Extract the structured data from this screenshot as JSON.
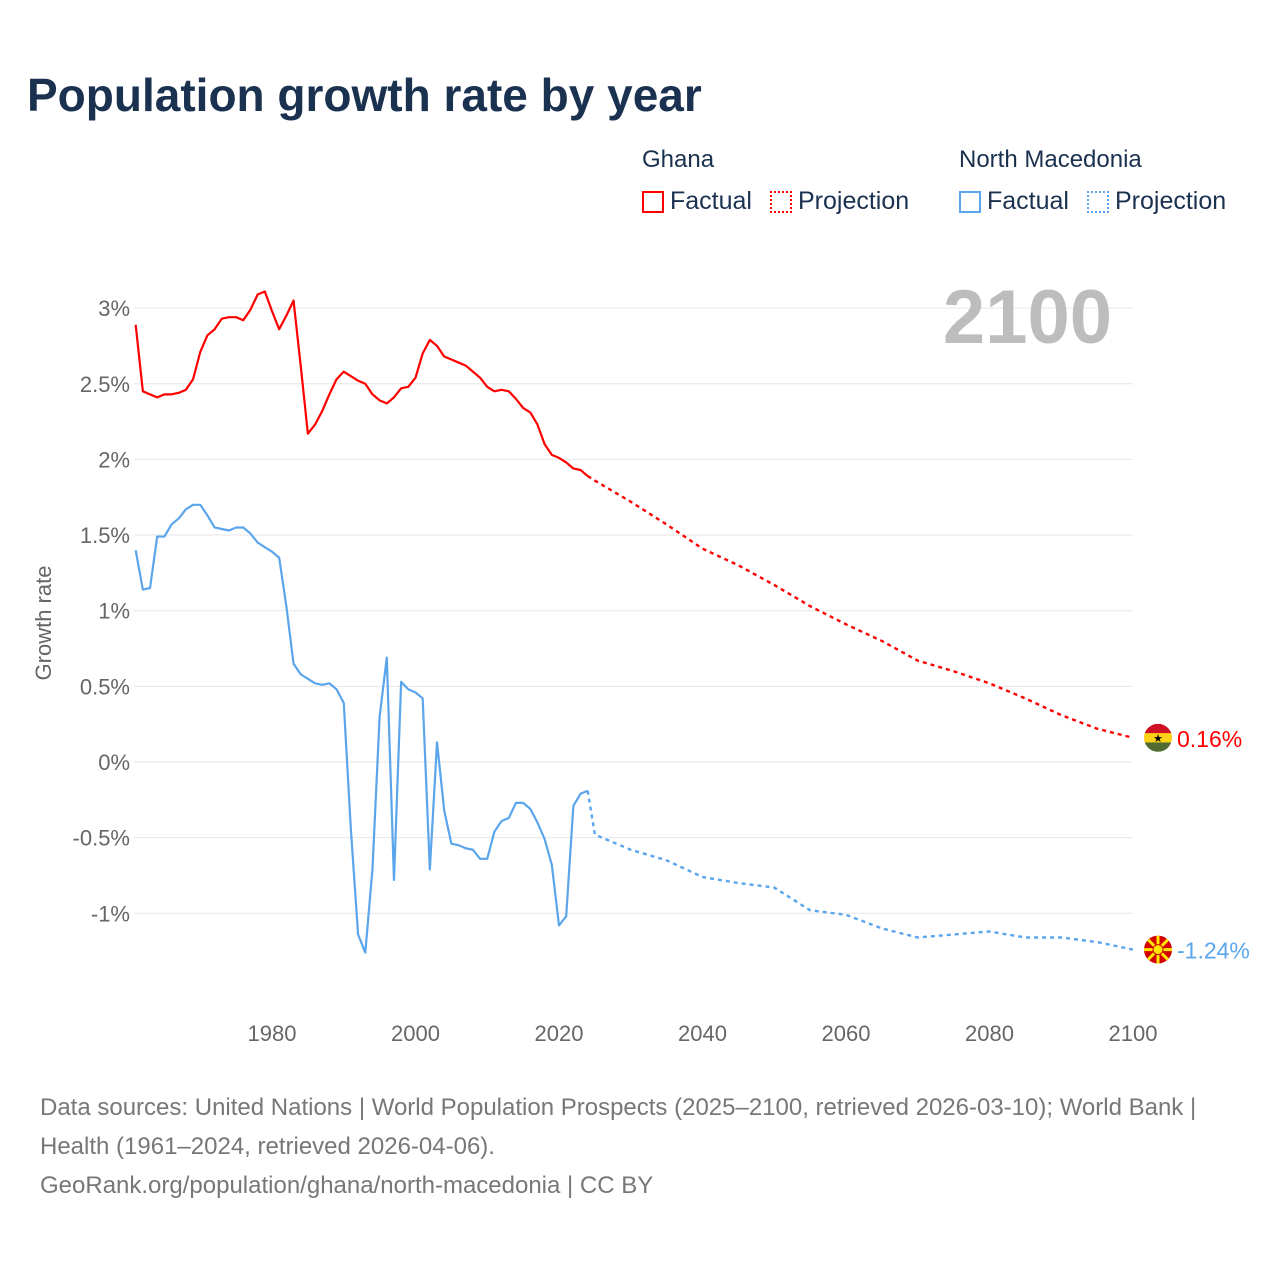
{
  "title": "Population growth rate by year",
  "legend": {
    "groups": [
      {
        "name": "Ghana",
        "color": "#ff0000",
        "factual_label": "Factual",
        "projection_label": "Projection"
      },
      {
        "name": "North Macedonia",
        "color": "#5aa5ec",
        "factual_label": "Factual",
        "projection_label": "Projection"
      }
    ]
  },
  "footer": {
    "sources": "Data sources: United Nations | World Population Prospects (2025–2100, retrieved 2026-03-10); World Bank | Health (1961–2024, retrieved 2026-04-06).",
    "link": "GeoRank.org/population/ghana/north-macedonia | CC BY"
  },
  "chart_data": {
    "type": "line",
    "ylabel": "Growth rate",
    "year_label": "2100",
    "xlim": [
      1961,
      2100
    ],
    "ylim": [
      -1.5,
      3.2
    ],
    "x_ticks": [
      1980,
      2000,
      2020,
      2040,
      2060,
      2080,
      2100
    ],
    "y_ticks": [
      3,
      2.5,
      2,
      1.5,
      1,
      0.5,
      0,
      -0.5,
      -1
    ],
    "y_tick_labels": [
      "3%",
      "2.5%",
      "2%",
      "1.5%",
      "1%",
      "0.5%",
      "0%",
      "-0.5%",
      "-1%"
    ],
    "grid": true,
    "series": [
      {
        "name": "Ghana",
        "color": "#ff0000",
        "end_label": "0.16%",
        "flag": "ghana-flag",
        "factual": {
          "start": 1961,
          "values": [
            2.89,
            2.45,
            2.43,
            2.41,
            2.43,
            2.43,
            2.44,
            2.46,
            2.53,
            2.71,
            2.82,
            2.86,
            2.93,
            2.94,
            2.94,
            2.92,
            2.99,
            3.09,
            3.11,
            2.98,
            2.86,
            2.95,
            3.05,
            2.62,
            2.17,
            2.23,
            2.32,
            2.43,
            2.53,
            2.58,
            2.55,
            2.52,
            2.5,
            2.43,
            2.39,
            2.37,
            2.41,
            2.47,
            2.48,
            2.54,
            2.7,
            2.79,
            2.75,
            2.68,
            2.66,
            2.64,
            2.62,
            2.58,
            2.54,
            2.48,
            2.45,
            2.46,
            2.45,
            2.4,
            2.34,
            2.31,
            2.23,
            2.1,
            2.03,
            2.01,
            1.98,
            1.94,
            1.93,
            1.89
          ]
        },
        "projection": {
          "x": [
            2024,
            2025,
            2030,
            2035,
            2040,
            2045,
            2050,
            2055,
            2060,
            2065,
            2070,
            2075,
            2080,
            2085,
            2090,
            2095,
            2100
          ],
          "values": [
            1.89,
            1.86,
            1.72,
            1.57,
            1.41,
            1.3,
            1.17,
            1.03,
            0.91,
            0.8,
            0.67,
            0.6,
            0.52,
            0.42,
            0.31,
            0.22,
            0.16
          ]
        }
      },
      {
        "name": "North Macedonia",
        "color": "#5aa5ec",
        "end_label": "-1.24%",
        "flag": "north-macedonia-flag",
        "factual": {
          "start": 1961,
          "values": [
            1.4,
            1.14,
            1.15,
            1.49,
            1.49,
            1.57,
            1.61,
            1.67,
            1.7,
            1.7,
            1.63,
            1.55,
            1.54,
            1.53,
            1.55,
            1.55,
            1.51,
            1.45,
            1.42,
            1.39,
            1.35,
            1.03,
            0.65,
            0.58,
            0.55,
            0.52,
            0.51,
            0.52,
            0.48,
            0.39,
            -0.45,
            -1.14,
            -1.26,
            -0.71,
            0.3,
            0.69,
            -0.78,
            0.53,
            0.48,
            0.46,
            0.42,
            -0.71,
            0.13,
            -0.32,
            -0.54,
            -0.55,
            -0.57,
            -0.58,
            -0.64,
            -0.64,
            -0.46,
            -0.39,
            -0.37,
            -0.27,
            -0.27,
            -0.31,
            -0.4,
            -0.51,
            -0.68,
            -1.08,
            -1.02,
            -0.29,
            -0.21,
            -0.19
          ]
        },
        "projection": {
          "x": [
            2024,
            2025,
            2030,
            2035,
            2040,
            2045,
            2050,
            2055,
            2060,
            2065,
            2070,
            2075,
            2080,
            2085,
            2090,
            2095,
            2100
          ],
          "values": [
            -0.19,
            -0.48,
            -0.58,
            -0.65,
            -0.76,
            -0.8,
            -0.83,
            -0.98,
            -1.01,
            -1.1,
            -1.16,
            -1.14,
            -1.12,
            -1.16,
            -1.16,
            -1.19,
            -1.24
          ]
        }
      }
    ]
  }
}
